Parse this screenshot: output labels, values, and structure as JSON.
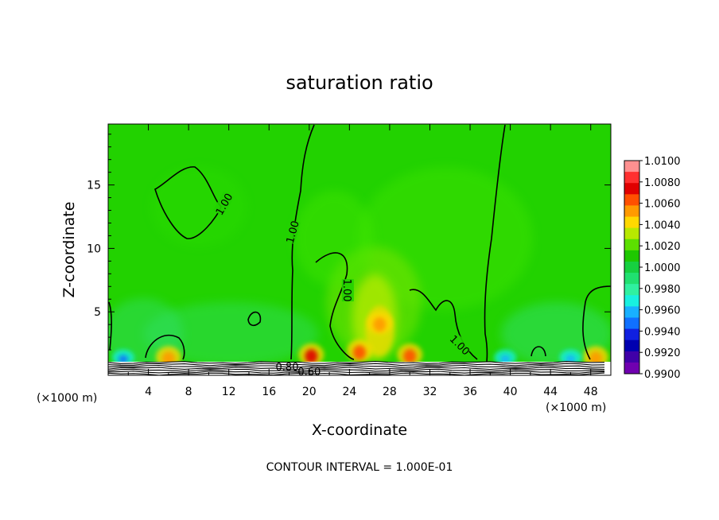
{
  "chart_data": {
    "type": "heatmap",
    "title": "saturation ratio",
    "xlabel": "X-coordinate",
    "ylabel": "Z-coordinate",
    "x_unit": "(×1000 m)",
    "x_unit_right": "(×1000 m)",
    "footer": "CONTOUR INTERVAL = 1.000E-01",
    "xlim": [
      0,
      50
    ],
    "ylim": [
      0,
      19.8
    ],
    "x_ticks": [
      4,
      8,
      12,
      16,
      20,
      24,
      28,
      32,
      36,
      40,
      44,
      48
    ],
    "y_ticks": [
      5,
      10,
      15
    ],
    "colorbar": {
      "labels": [
        "1.0100",
        "1.0080",
        "1.0060",
        "1.0040",
        "1.0020",
        "1.0000",
        "0.9980",
        "0.9960",
        "0.9940",
        "0.9920",
        "0.9900"
      ],
      "colors": [
        "#ff9090",
        "#ff3030",
        "#e00000",
        "#ff5000",
        "#ff9a00",
        "#ffd800",
        "#b8e800",
        "#5ce000",
        "#1ec800",
        "#16d040",
        "#20e070",
        "#30f0a0",
        "#18f0e0",
        "#18b0ff",
        "#1070ff",
        "#1020e0",
        "#0000b0",
        "#4000a8",
        "#7000b0"
      ]
    },
    "background_value": 1.0,
    "contour_labels": [
      {
        "text": "1.00",
        "x": 11.5,
        "y": 13.5,
        "angle": -60
      },
      {
        "text": "1.00",
        "x": 18.3,
        "y": 11.3,
        "angle": -75
      },
      {
        "text": "1.00",
        "x": 23.8,
        "y": 6.7,
        "angle": 90
      },
      {
        "text": "1.00",
        "x": 35.0,
        "y": 2.4,
        "angle": 45
      },
      {
        "text": "0.80",
        "x": 17.8,
        "y": 0.7,
        "angle": 0
      },
      {
        "text": "0.60",
        "x": 20.0,
        "y": 0.3,
        "angle": 0
      }
    ],
    "features": [
      {
        "kind": "hot",
        "x": 20.2,
        "y": 1.5,
        "value": 1.008
      },
      {
        "kind": "hot",
        "x": 25.0,
        "y": 1.8,
        "value": 1.006
      },
      {
        "kind": "hot",
        "x": 27.0,
        "y": 4.0,
        "value": 1.004
      },
      {
        "kind": "hot",
        "x": 30.0,
        "y": 1.5,
        "value": 1.005
      },
      {
        "kind": "hot",
        "x": 6.0,
        "y": 1.3,
        "value": 1.004
      },
      {
        "kind": "hot",
        "x": 48.5,
        "y": 1.3,
        "value": 1.004
      },
      {
        "kind": "cold",
        "x": 1.5,
        "y": 1.4,
        "value": 0.994
      },
      {
        "kind": "cold",
        "x": 39.5,
        "y": 1.4,
        "value": 0.995
      },
      {
        "kind": "cold",
        "x": 46.0,
        "y": 1.4,
        "value": 0.996
      }
    ]
  }
}
